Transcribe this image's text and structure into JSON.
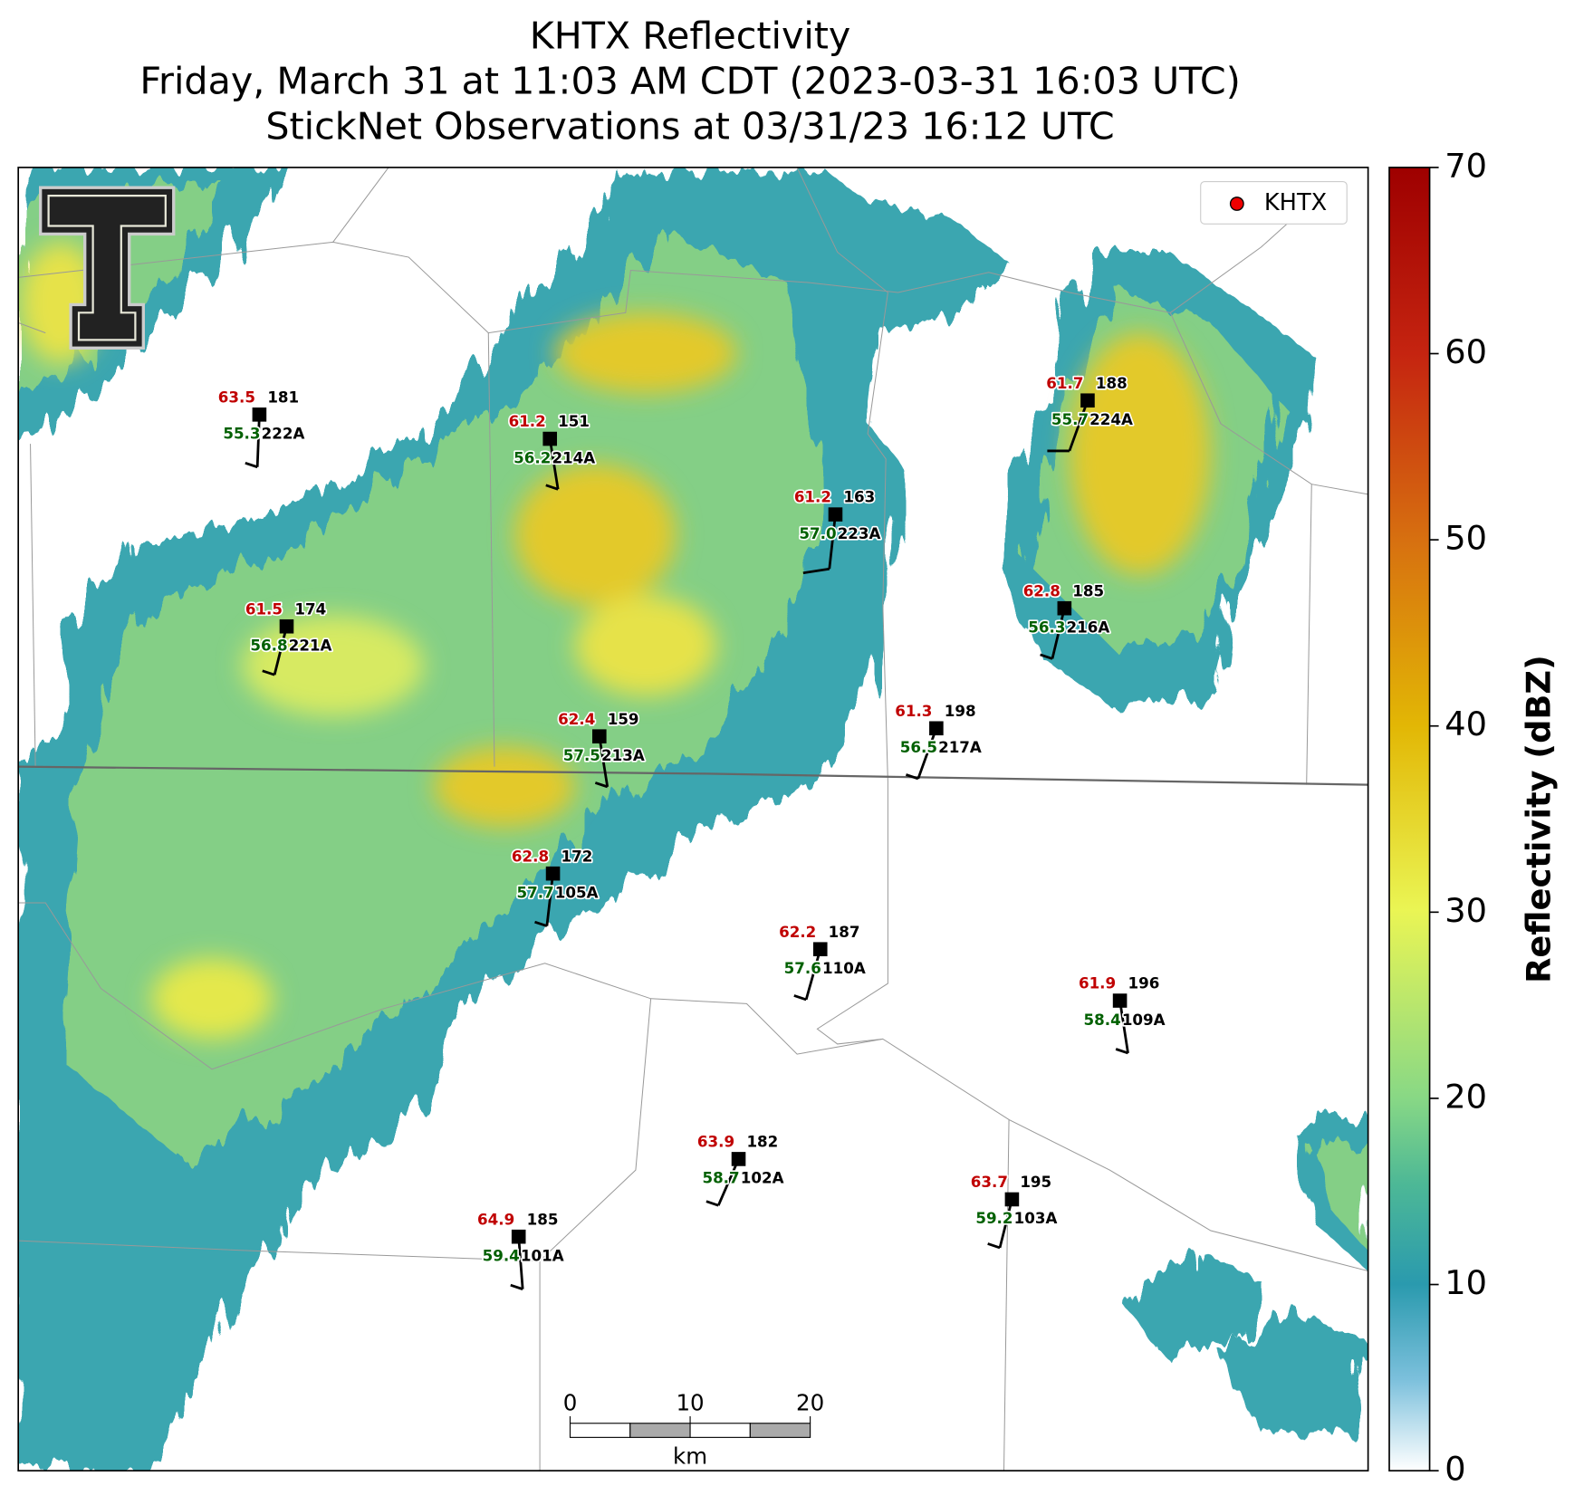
{
  "header": {
    "title_lines": [
      "KHTX Reflectivity",
      "Friday, March 31 at 11:03 AM CDT (2023-03-31 16:03 UTC)",
      "StickNet Observations at 03/31/23 16:12 UTC"
    ]
  },
  "legend": {
    "label": "KHTX"
  },
  "stations": [
    {
      "temperature": "63.5",
      "pressure": "181",
      "dewpoint": "55.3",
      "id": "222A"
    },
    {
      "temperature": "61.2",
      "pressure": "151",
      "dewpoint": "56.2",
      "id": "214A"
    },
    {
      "temperature": "61.2",
      "pressure": "163",
      "dewpoint": "57.0",
      "id": "223A"
    },
    {
      "temperature": "61.7",
      "pressure": "188",
      "dewpoint": "55.7",
      "id": "224A"
    },
    {
      "temperature": "61.5",
      "pressure": "174",
      "dewpoint": "56.8",
      "id": "221A"
    },
    {
      "temperature": "62.8",
      "pressure": "185",
      "dewpoint": "56.3",
      "id": "216A"
    },
    {
      "temperature": "62.4",
      "pressure": "159",
      "dewpoint": "57.5",
      "id": "213A"
    },
    {
      "temperature": "61.3",
      "pressure": "198",
      "dewpoint": "56.5",
      "id": "217A"
    },
    {
      "temperature": "62.8",
      "pressure": "172",
      "dewpoint": "57.7",
      "id": "105A"
    },
    {
      "temperature": "62.2",
      "pressure": "187",
      "dewpoint": "57.6",
      "id": "110A"
    },
    {
      "temperature": "61.9",
      "pressure": "196",
      "dewpoint": "58.4",
      "id": "109A"
    },
    {
      "temperature": "63.9",
      "pressure": "182",
      "dewpoint": "58.7",
      "id": "102A"
    },
    {
      "temperature": "63.7",
      "pressure": "195",
      "dewpoint": "59.2",
      "id": "103A"
    },
    {
      "temperature": "64.9",
      "pressure": "185",
      "dewpoint": "59.4",
      "id": "101A"
    }
  ],
  "colorbar": {
    "label": "Reflectivity (dBZ)",
    "lim": [
      0,
      70
    ],
    "ticks": [
      0,
      10,
      20,
      30,
      40,
      50,
      60,
      70
    ]
  },
  "scale_bar": {
    "lim": [
      0,
      20
    ],
    "ticks": [
      0,
      10,
      20
    ],
    "unit": "km"
  }
}
